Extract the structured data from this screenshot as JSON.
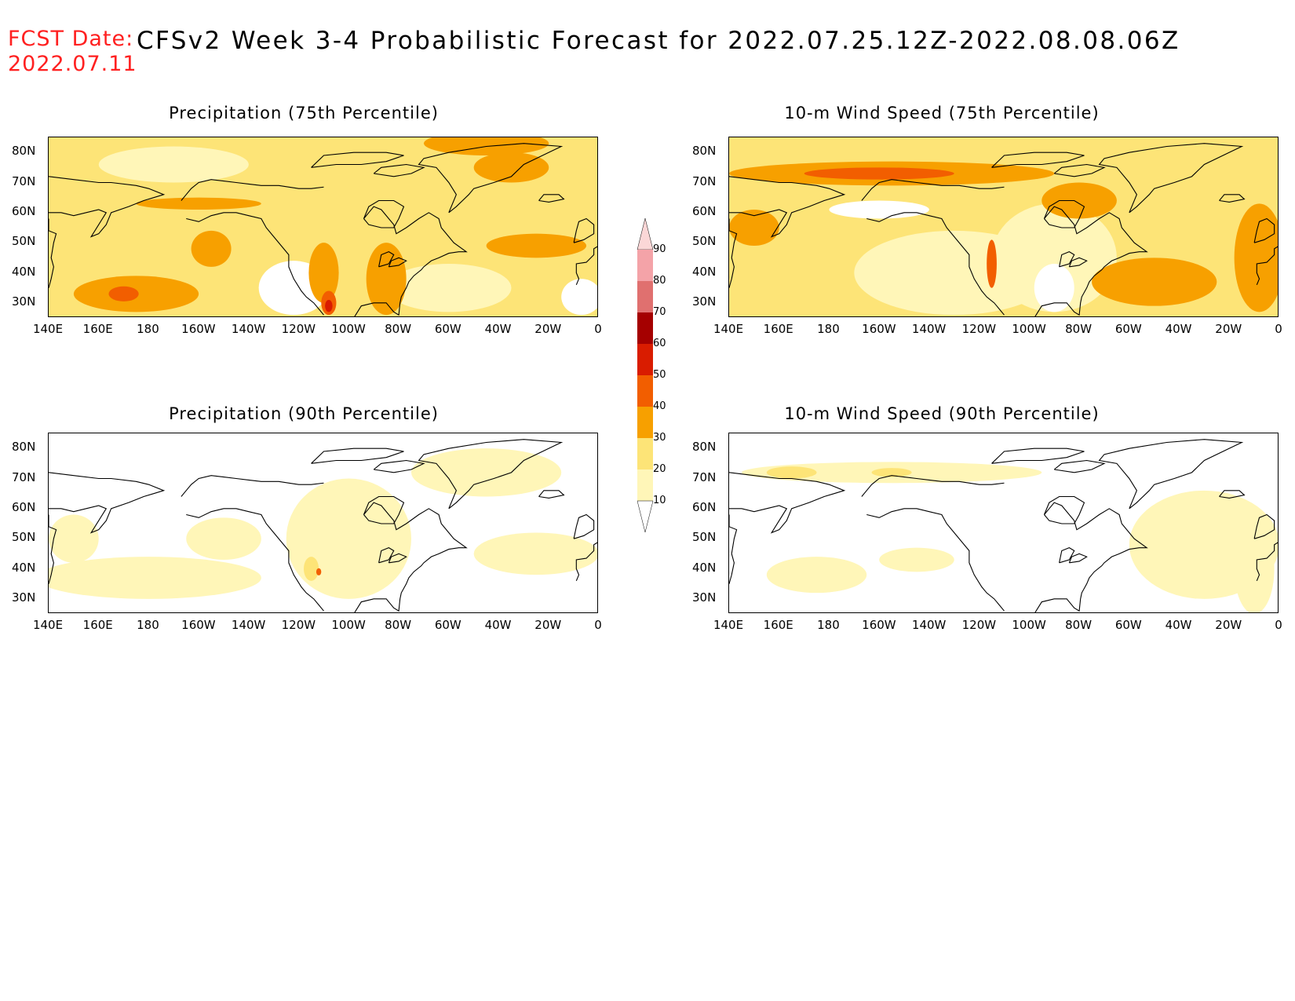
{
  "header": {
    "fcst_label": "FCST Date:",
    "fcst_date": "2022.07.11",
    "title": "CFSv2 Week 3-4 Probabilistic Forecast for 2022.07.25.12Z-2022.08.08.06Z"
  },
  "panels": [
    {
      "id": "precip75",
      "title": "Precipitation (75th Percentile)",
      "intensity": "high",
      "variable": "precipitation"
    },
    {
      "id": "wind75",
      "title": "10-m Wind Speed (75th Percentile)",
      "intensity": "high",
      "variable": "wind"
    },
    {
      "id": "precip90",
      "title": "Precipitation (90th Percentile)",
      "intensity": "low",
      "variable": "precipitation"
    },
    {
      "id": "wind90",
      "title": "10-m Wind Speed (90th Percentile)",
      "intensity": "low",
      "variable": "wind"
    }
  ],
  "axes": {
    "lon_labels": [
      "140E",
      "160E",
      "180",
      "160W",
      "140W",
      "120W",
      "100W",
      "80W",
      "60W",
      "40W",
      "20W",
      "0"
    ],
    "lat_labels": [
      "80N",
      "70N",
      "60N",
      "50N",
      "40N",
      "30N"
    ],
    "lon_range": [
      140,
      360
    ],
    "lat_range": [
      25,
      85
    ]
  },
  "colorbar": {
    "levels": [
      "90",
      "80",
      "70",
      "60",
      "50",
      "40",
      "30",
      "20",
      "10"
    ],
    "colors": [
      "#f4a3a8",
      "#e0706f",
      "#a50000",
      "#d91c00",
      "#f25e00",
      "#f7a000",
      "#fde477",
      "#fff6b8"
    ],
    "top_triangle_color": "#fbd7d7"
  },
  "palette": {
    "white": "#ffffff",
    "pale_yellow": "#fff6b8",
    "yellow": "#fde477",
    "orange": "#f7a000",
    "dark_orange": "#f25e00",
    "red": "#d91c00",
    "dark_red": "#a50000",
    "title_red": "#ff2020"
  }
}
